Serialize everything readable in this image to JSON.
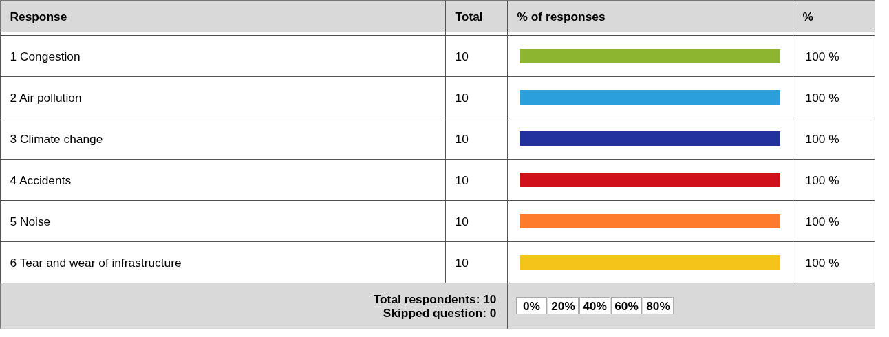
{
  "chart_data": {
    "type": "bar",
    "orientation": "horizontal",
    "categories": [
      "1 Congestion",
      "2 Air pollution",
      "3 Climate change",
      "4 Accidents",
      "5 Noise",
      "6 Tear and wear of infrastructure"
    ],
    "values": [
      100,
      100,
      100,
      100,
      100,
      100
    ],
    "colors": [
      "#8db52f",
      "#2a9fd9",
      "#22319e",
      "#d0111b",
      "#ff7b2c",
      "#f4c41a"
    ],
    "value_labels": [
      "100 %",
      "100 %",
      "100 %",
      "100 %",
      "100 %",
      "100 %"
    ],
    "annotations": [
      "Response",
      "Total",
      "% of responses",
      "%",
      "Total respondents: 10",
      "Skipped question: 0",
      "10",
      "10",
      "10",
      "10",
      "10",
      "10",
      "0%",
      "20%",
      "40%",
      "60%",
      "80%"
    ]
  }
}
